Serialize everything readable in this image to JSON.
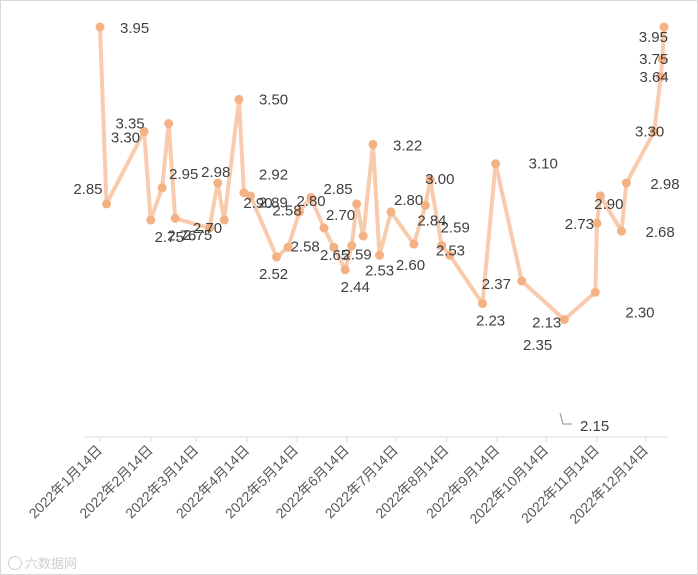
{
  "chart_data": {
    "type": "line",
    "title": "",
    "xlabel": "",
    "ylabel": "",
    "x_tick_labels": [
      "2022年1月14日",
      "2022年2月14日",
      "2022年3月14日",
      "2022年4月14日",
      "2022年5月14日",
      "2022年6月14日",
      "2022年7月14日",
      "2022年8月14日",
      "2022年9月14日",
      "2022年10月14日",
      "2022年11月14日",
      "2022年12月14日"
    ],
    "x_tick_dates": [
      "2022-01-14",
      "2022-02-14",
      "2022-03-14",
      "2022-04-14",
      "2022-05-14",
      "2022-06-14",
      "2022-07-14",
      "2022-08-14",
      "2022-09-14",
      "2022-10-14",
      "2022-11-14",
      "2022-12-14"
    ],
    "xlim": [
      "2022-01-14",
      "2022-12-25"
    ],
    "ylim": [
      1.4,
      4.0
    ],
    "grid": false,
    "legend": "none",
    "line_color": "#f8cbad",
    "marker_color": "#f4b183",
    "series": [
      {
        "points": [
          {
            "x": "2022-01-14",
            "y": 3.95,
            "label": "3.95"
          },
          {
            "x": "2022-01-18",
            "y": 2.85,
            "label": "2.85"
          },
          {
            "x": "2022-02-10",
            "y": 3.3,
            "label": "3.30"
          },
          {
            "x": "2022-02-14",
            "y": 2.75,
            "label": "2.75"
          },
          {
            "x": "2022-02-21",
            "y": 2.95,
            "label": "2.95"
          },
          {
            "x": "2022-02-25",
            "y": 3.35,
            "label": "3.35"
          },
          {
            "x": "2022-03-01",
            "y": 2.76,
            "label": "2.76"
          },
          {
            "x": "2022-03-22",
            "y": 2.7,
            "label": "2.70"
          },
          {
            "x": "2022-03-27",
            "y": 2.98,
            "label": "2.98"
          },
          {
            "x": "2022-03-31",
            "y": 2.75,
            "label": "2.75"
          },
          {
            "x": "2022-04-09",
            "y": 3.5,
            "label": "3.50"
          },
          {
            "x": "2022-04-12",
            "y": 2.92,
            "label": "2.92"
          },
          {
            "x": "2022-04-16",
            "y": 2.9,
            "label": "2.90"
          },
          {
            "x": "2022-05-02",
            "y": 2.52,
            "label": "2.52"
          },
          {
            "x": "2022-05-09",
            "y": 2.58,
            "label": "2.58"
          },
          {
            "x": "2022-05-16",
            "y": 2.8,
            "label": "2.80"
          },
          {
            "x": "2022-05-23",
            "y": 2.89,
            "label": "2.89"
          },
          {
            "x": "2022-05-31",
            "y": 2.7,
            "label": "2.70"
          },
          {
            "x": "2022-06-06",
            "y": 2.58,
            "label": "2.58"
          },
          {
            "x": "2022-06-13",
            "y": 2.44,
            "label": "2.44"
          },
          {
            "x": "2022-06-17",
            "y": 2.59,
            "label": "2.59"
          },
          {
            "x": "2022-06-20",
            "y": 2.85,
            "label": "2.85"
          },
          {
            "x": "2022-06-24",
            "y": 2.65,
            "label": "2.65"
          },
          {
            "x": "2022-06-30",
            "y": 3.22,
            "label": "3.22"
          },
          {
            "x": "2022-07-04",
            "y": 2.53,
            "label": "2.53"
          },
          {
            "x": "2022-07-11",
            "y": 2.8,
            "label": "2.80"
          },
          {
            "x": "2022-07-25",
            "y": 2.6,
            "label": "2.60"
          },
          {
            "x": "2022-08-01",
            "y": 2.84,
            "label": "2.84"
          },
          {
            "x": "2022-08-04",
            "y": 3.0,
            "label": "3.00"
          },
          {
            "x": "2022-08-11",
            "y": 2.59,
            "label": "2.59"
          },
          {
            "x": "2022-08-16",
            "y": 2.53,
            "label": "2.53"
          },
          {
            "x": "2022-09-05",
            "y": 2.23,
            "label": "2.23"
          },
          {
            "x": "2022-09-13",
            "y": 3.1,
            "label": "3.10"
          },
          {
            "x": "2022-09-29",
            "y": 2.37,
            "label": "2.37"
          },
          {
            "x": "2022-10-25",
            "y": 2.13,
            "label": "2.13"
          },
          {
            "x": "2022-11-13",
            "y": 2.3,
            "label": "2.30"
          },
          {
            "x": "2022-11-14",
            "y": 2.73,
            "label": "2.73"
          },
          {
            "x": "2022-11-16",
            "y": 2.9,
            "label": "2.90"
          },
          {
            "x": "2022-11-29",
            "y": 2.68,
            "label": "2.68"
          },
          {
            "x": "2022-12-02",
            "y": 2.98,
            "label": "2.98"
          },
          {
            "x": "2022-12-19",
            "y": 3.3,
            "label": "3.30"
          },
          {
            "x": "2022-12-23",
            "y": 3.64,
            "label": "3.64"
          },
          {
            "x": "2022-12-24",
            "y": 3.75,
            "label": "3.75"
          },
          {
            "x": "2022-12-25",
            "y": 3.95,
            "label": "3.95"
          }
        ]
      }
    ],
    "extra_labels": [
      "2.35",
      "2.15"
    ]
  },
  "watermark": "六数据网"
}
